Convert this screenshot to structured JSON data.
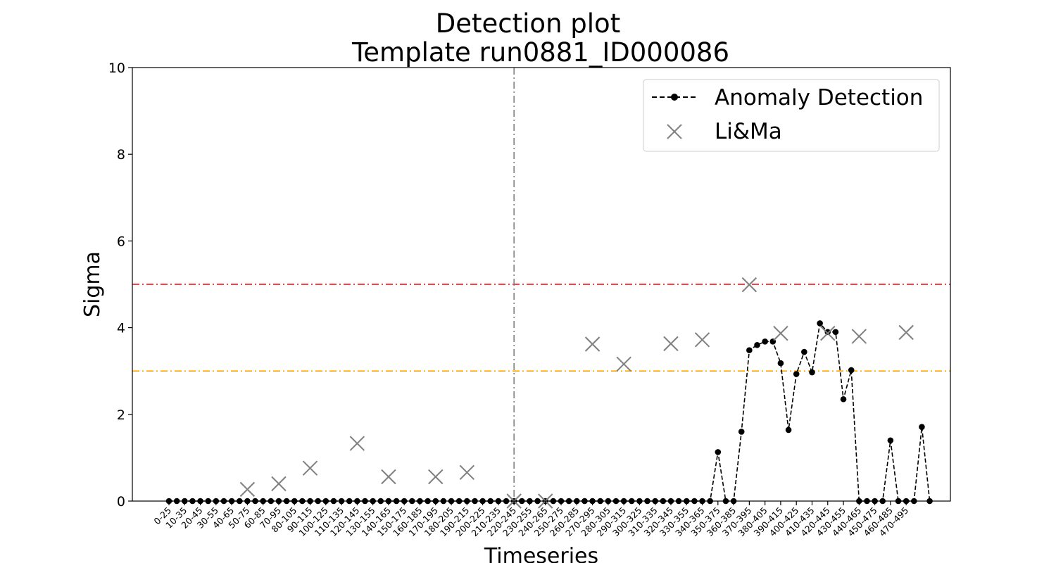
{
  "chart_data": {
    "type": "line",
    "title": "Detection plot",
    "subtitle": "Template run0881_ID000086",
    "xlabel": "Timeseries",
    "ylabel": "Sigma",
    "ylim": [
      0,
      10
    ],
    "yticks": [
      "0",
      "2",
      "4",
      "6",
      "8",
      "10"
    ],
    "x_tick_labels": [
      "0-25",
      "10-35",
      "20-45",
      "30-55",
      "40-65",
      "50-75",
      "60-85",
      "70-95",
      "80-105",
      "90-115",
      "100-125",
      "110-135",
      "120-145",
      "130-155",
      "140-165",
      "150-175",
      "160-185",
      "170-195",
      "180-205",
      "190-215",
      "200-225",
      "210-235",
      "220-245",
      "230-255",
      "240-265",
      "250-275",
      "260-285",
      "270-295",
      "280-305",
      "290-315",
      "300-325",
      "310-335",
      "320-345",
      "330-355",
      "340-365",
      "350-375",
      "360-385",
      "370-395",
      "380-405",
      "390-415",
      "400-425",
      "410-435",
      "420-445",
      "430-455",
      "440-465",
      "450-475",
      "460-485",
      "470-495"
    ],
    "grid": false,
    "legend_position": "top-right",
    "series": [
      {
        "name": "Anomaly Detection",
        "style": "dashed-line-with-dots",
        "color": "#000000",
        "values": [
          0,
          0,
          0,
          0,
          0,
          0,
          0,
          0,
          0,
          0,
          0,
          0,
          0,
          0,
          0,
          0,
          0,
          0,
          0,
          0,
          0,
          0,
          0,
          0,
          0,
          0,
          0,
          0,
          0,
          0,
          0,
          0,
          0,
          0,
          0,
          0,
          0,
          0,
          0,
          0,
          0,
          0,
          0,
          0,
          0,
          0,
          0,
          0,
          0,
          0,
          0,
          0,
          0,
          0,
          0,
          0,
          0,
          0,
          0,
          0,
          0,
          0,
          0,
          0,
          0,
          0,
          0,
          0,
          0,
          0,
          1.13,
          0,
          0,
          1.6,
          3.48,
          3.6,
          3.68,
          3.68,
          3.18,
          1.64,
          2.93,
          3.44,
          2.97,
          4.1,
          3.9,
          3.9,
          2.35,
          3.02,
          0,
          0,
          0,
          0,
          1.4,
          0,
          0,
          0,
          1.71,
          0
        ]
      },
      {
        "name": "Li&Ma",
        "style": "x-markers",
        "color": "#808080",
        "x_tick_index": [
          0,
          5,
          10,
          15,
          20,
          25,
          30,
          35,
          40,
          45,
          50,
          55,
          60,
          65,
          70,
          75,
          80,
          85,
          90,
          95,
          100,
          105,
          110,
          115,
          120,
          125,
          130,
          135,
          140,
          145,
          150,
          155,
          160,
          165,
          170,
          175,
          180,
          185,
          190,
          195,
          200,
          205,
          210,
          215,
          220,
          225,
          230,
          235
        ],
        "points": [
          {
            "tick": 5,
            "value": 0.27
          },
          {
            "tick": 7,
            "value": 0.4
          },
          {
            "tick": 9,
            "value": 0.76
          },
          {
            "tick": 12,
            "value": 1.33
          },
          {
            "tick": 14,
            "value": 0.56
          },
          {
            "tick": 17,
            "value": 0.56
          },
          {
            "tick": 19,
            "value": 0.66
          },
          {
            "tick": 22,
            "value": 0.0
          },
          {
            "tick": 24,
            "value": 0.0
          },
          {
            "tick": 27,
            "value": 3.62
          },
          {
            "tick": 29,
            "value": 3.16
          },
          {
            "tick": 32,
            "value": 3.63
          },
          {
            "tick": 34,
            "value": 3.72
          },
          {
            "tick": 37,
            "value": 4.99
          },
          {
            "tick": 39,
            "value": 3.87
          },
          {
            "tick": 42,
            "value": 3.87
          },
          {
            "tick": 44,
            "value": 3.8
          },
          {
            "tick": 47,
            "value": 3.89
          }
        ]
      }
    ],
    "thresholds": [
      {
        "value": 5,
        "color": "#ff0000",
        "style": "dash-dot"
      },
      {
        "value": 3,
        "color": "#ffa500",
        "style": "dash-dot"
      }
    ],
    "vertical_marker": {
      "tick": 22,
      "color": "#808080",
      "style": "dash-dot"
    }
  }
}
